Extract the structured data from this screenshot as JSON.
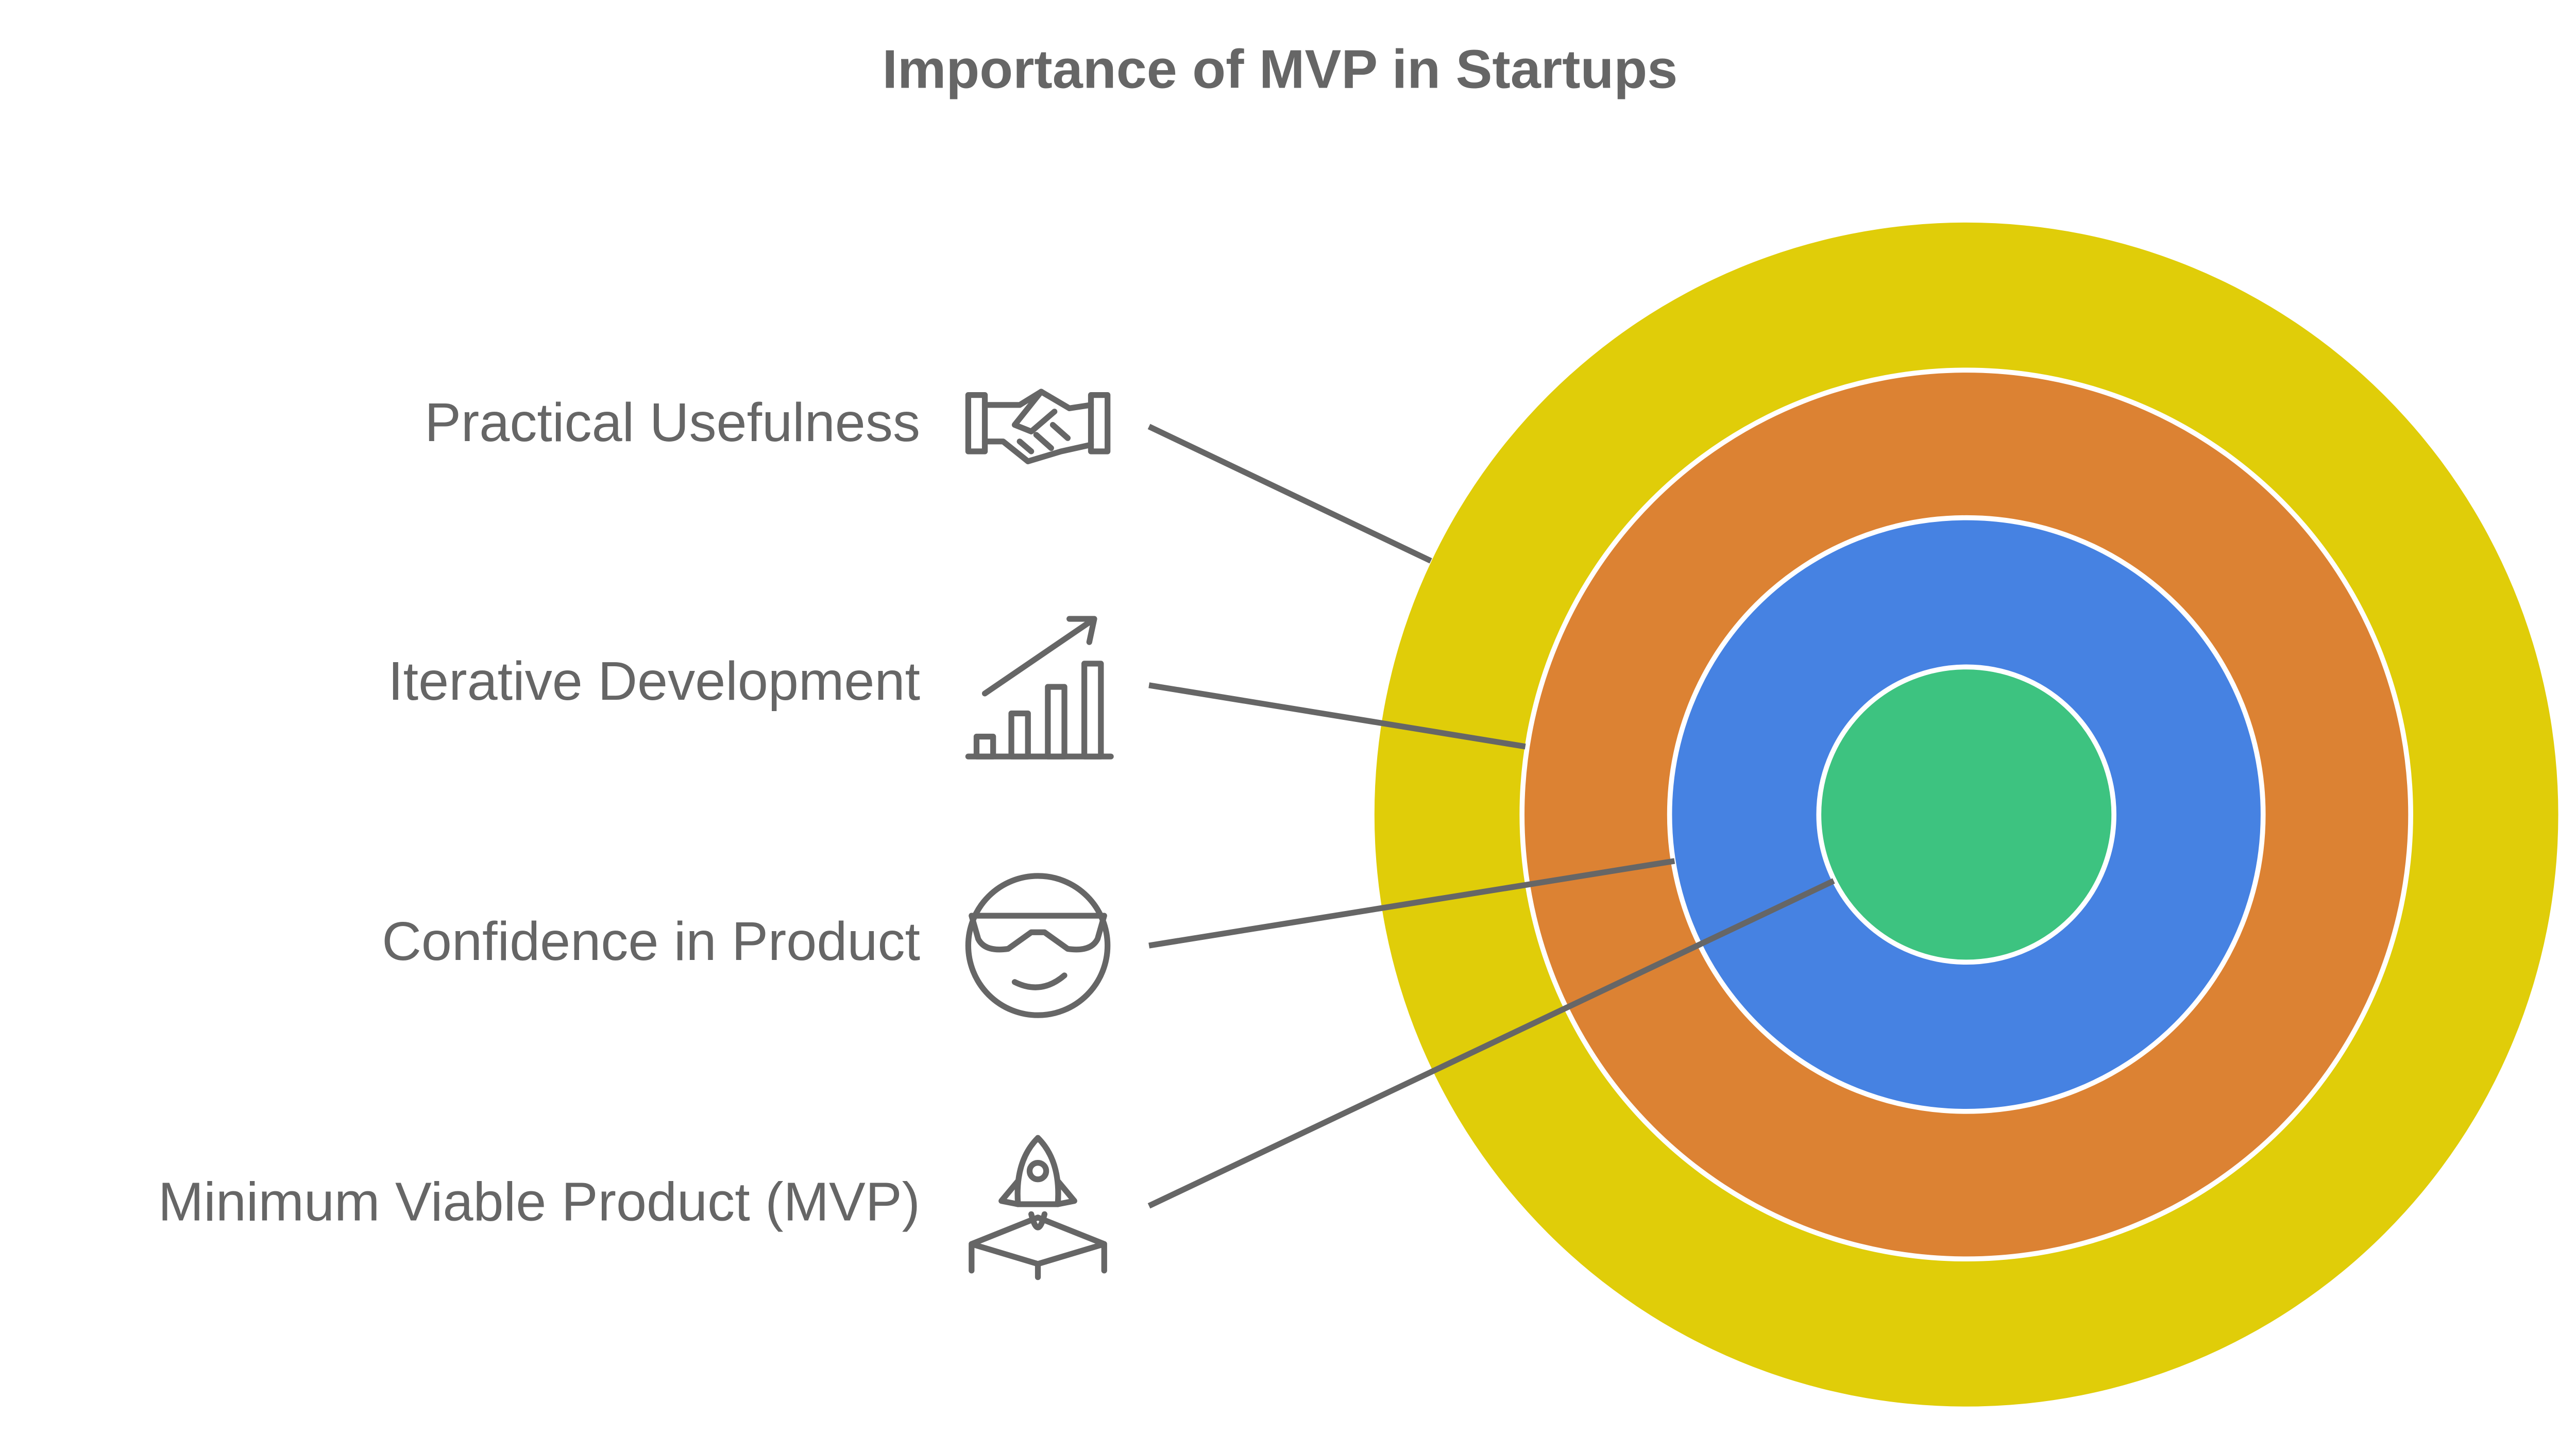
{
  "title": "Importance of MVP in Startups",
  "layers": [
    {
      "label": "Practical Usefulness"
    },
    {
      "label": "Iterative Development"
    },
    {
      "label": "Confidence in Product"
    },
    {
      "label": "Minimum Viable Product (MVP)"
    }
  ]
}
